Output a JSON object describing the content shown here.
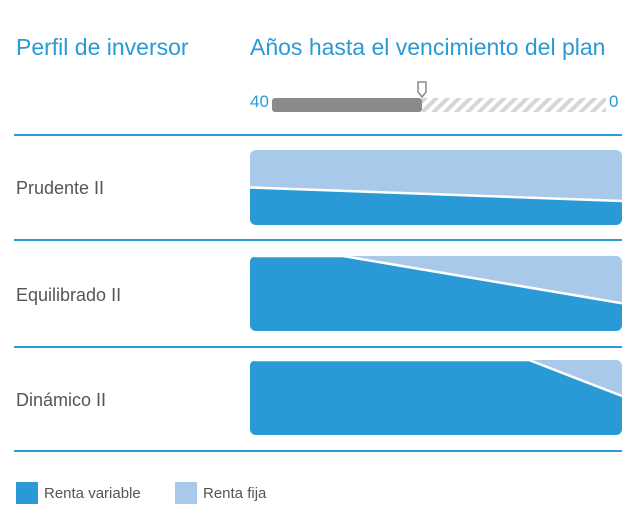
{
  "header": {
    "left_title": "Perfil de inversor",
    "right_title": "Años hasta el vencimiento del plan"
  },
  "timeline": {
    "start_label": "40",
    "end_label": "0",
    "range": [
      40,
      0
    ],
    "elapsed_fraction": 0.45
  },
  "colors": {
    "accent": "#2a9ad6",
    "variable": "#2a9ad6",
    "fixed": "#a9c9ea",
    "track_filled": "#8a8a8a",
    "track_remaining": "#d6d6d6"
  },
  "legend": [
    {
      "label": "Renta variable",
      "color": "#2a9ad6"
    },
    {
      "label": "Renta fija",
      "color": "#a9c9ea"
    }
  ],
  "chart_data": {
    "type": "area",
    "x_label": "Años hasta el vencimiento del plan",
    "x_ticks": [
      "40",
      "0"
    ],
    "series_legend": [
      "Renta variable",
      "Renta fija"
    ],
    "profiles": [
      {
        "name": "Prudente II",
        "variable_points": [
          [
            40,
            50
          ],
          [
            0,
            32
          ]
        ]
      },
      {
        "name": "Equilibrado II",
        "variable_points": [
          [
            40,
            100
          ],
          [
            30,
            100
          ],
          [
            0,
            37
          ]
        ]
      },
      {
        "name": "Dinámico II",
        "variable_points": [
          [
            40,
            100
          ],
          [
            10,
            100
          ],
          [
            0,
            52
          ]
        ]
      }
    ]
  }
}
